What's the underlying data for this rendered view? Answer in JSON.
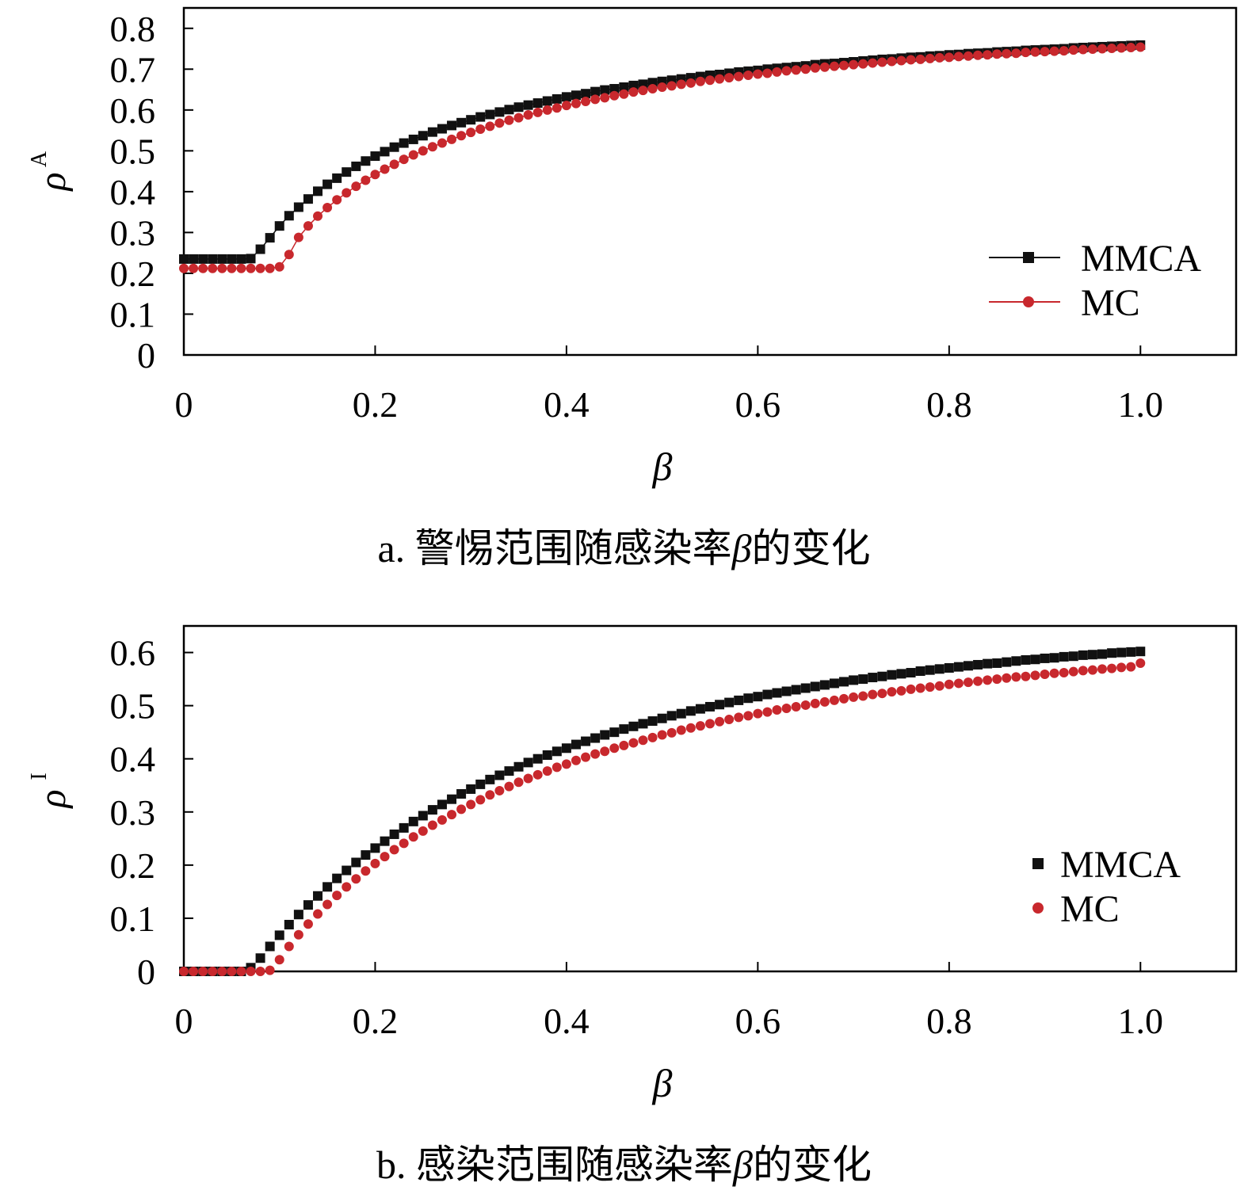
{
  "chart_data": [
    {
      "type": "line",
      "panel": "a",
      "caption": {
        "prefix": "a. 警惕范围随感染率",
        "symbol": "β",
        "suffix": "的变化"
      },
      "xlabel": "β",
      "ylabel": "ρ",
      "ylabel_sup": "A",
      "xlim": [
        0,
        1.1
      ],
      "ylim": [
        0,
        0.85
      ],
      "xticks": [
        0,
        0.2,
        0.4,
        0.6,
        0.8,
        1.0
      ],
      "xtick_labels": [
        "0",
        "0.2",
        "0.4",
        "0.6",
        "0.8",
        "1.0"
      ],
      "yticks": [
        0,
        0.1,
        0.2,
        0.3,
        0.4,
        0.5,
        0.6,
        0.7,
        0.8
      ],
      "ytick_labels": [
        "0",
        "0.1",
        "0.2",
        "0.3",
        "0.4",
        "0.5",
        "0.6",
        "0.7",
        "0.8"
      ],
      "grid": false,
      "legend": {
        "position": "right",
        "show_lines": true
      },
      "x": [
        0.0,
        0.01,
        0.02,
        0.03,
        0.04,
        0.05,
        0.06,
        0.07,
        0.08,
        0.09,
        0.1,
        0.11,
        0.12,
        0.13,
        0.14,
        0.15,
        0.16,
        0.17,
        0.18,
        0.19,
        0.2,
        0.21,
        0.22,
        0.23,
        0.24,
        0.25,
        0.26,
        0.27,
        0.28,
        0.29,
        0.3,
        0.31,
        0.32,
        0.33,
        0.34,
        0.35,
        0.36,
        0.37,
        0.38,
        0.39,
        0.4,
        0.41,
        0.42,
        0.43,
        0.44,
        0.45,
        0.46,
        0.47,
        0.48,
        0.49,
        0.5,
        0.51,
        0.52,
        0.53,
        0.54,
        0.55,
        0.56,
        0.57,
        0.58,
        0.59,
        0.6,
        0.61,
        0.62,
        0.63,
        0.64,
        0.65,
        0.66,
        0.67,
        0.68,
        0.69,
        0.7,
        0.71,
        0.72,
        0.73,
        0.74,
        0.75,
        0.76,
        0.77,
        0.78,
        0.79,
        0.8,
        0.81,
        0.82,
        0.83,
        0.84,
        0.85,
        0.86,
        0.87,
        0.88,
        0.89,
        0.9,
        0.91,
        0.92,
        0.93,
        0.94,
        0.95,
        0.96,
        0.97,
        0.98,
        0.99,
        1.0
      ],
      "series": [
        {
          "name": "MMCA",
          "color": "#111111",
          "marker": "square",
          "values": [
            0.235,
            0.235,
            0.235,
            0.235,
            0.235,
            0.235,
            0.235,
            0.236,
            0.259,
            0.287,
            0.316,
            0.341,
            0.362,
            0.382,
            0.401,
            0.418,
            0.433,
            0.448,
            0.462,
            0.475,
            0.487,
            0.498,
            0.509,
            0.519,
            0.528,
            0.537,
            0.546,
            0.554,
            0.562,
            0.569,
            0.576,
            0.583,
            0.589,
            0.595,
            0.601,
            0.607,
            0.612,
            0.617,
            0.622,
            0.627,
            0.632,
            0.636,
            0.64,
            0.645,
            0.649,
            0.652,
            0.656,
            0.66,
            0.663,
            0.667,
            0.67,
            0.673,
            0.676,
            0.679,
            0.682,
            0.685,
            0.687,
            0.69,
            0.693,
            0.695,
            0.697,
            0.7,
            0.702,
            0.704,
            0.706,
            0.708,
            0.711,
            0.713,
            0.714,
            0.716,
            0.718,
            0.72,
            0.722,
            0.724,
            0.725,
            0.727,
            0.729,
            0.73,
            0.732,
            0.733,
            0.735,
            0.736,
            0.738,
            0.739,
            0.74,
            0.742,
            0.743,
            0.744,
            0.746,
            0.747,
            0.748,
            0.749,
            0.75,
            0.752,
            0.753,
            0.754,
            0.755,
            0.756,
            0.757,
            0.758,
            0.759
          ]
        },
        {
          "name": "MC",
          "color": "#c8282d",
          "marker": "circle",
          "values": [
            0.212,
            0.212,
            0.212,
            0.212,
            0.212,
            0.212,
            0.212,
            0.212,
            0.212,
            0.212,
            0.216,
            0.246,
            0.288,
            0.316,
            0.34,
            0.361,
            0.38,
            0.397,
            0.413,
            0.428,
            0.442,
            0.455,
            0.467,
            0.479,
            0.49,
            0.5,
            0.51,
            0.519,
            0.528,
            0.537,
            0.545,
            0.553,
            0.56,
            0.568,
            0.575,
            0.581,
            0.588,
            0.594,
            0.6,
            0.605,
            0.611,
            0.616,
            0.621,
            0.626,
            0.63,
            0.635,
            0.639,
            0.644,
            0.648,
            0.652,
            0.656,
            0.659,
            0.663,
            0.666,
            0.67,
            0.673,
            0.676,
            0.679,
            0.682,
            0.685,
            0.688,
            0.69,
            0.693,
            0.696,
            0.698,
            0.7,
            0.703,
            0.705,
            0.707,
            0.709,
            0.711,
            0.713,
            0.715,
            0.717,
            0.719,
            0.721,
            0.723,
            0.724,
            0.726,
            0.728,
            0.729,
            0.731,
            0.732,
            0.734,
            0.735,
            0.737,
            0.738,
            0.739,
            0.741,
            0.742,
            0.743,
            0.744,
            0.745,
            0.747,
            0.748,
            0.749,
            0.75,
            0.751,
            0.752,
            0.753,
            0.754
          ]
        }
      ]
    },
    {
      "type": "scatter",
      "panel": "b",
      "caption": {
        "prefix": "b. 感染范围随感染率",
        "symbol": "β",
        "suffix": "的变化"
      },
      "xlabel": "β",
      "ylabel": "ρ",
      "ylabel_sup": "I",
      "xlim": [
        0,
        1.1
      ],
      "ylim": [
        0,
        0.65
      ],
      "xticks": [
        0,
        0.2,
        0.4,
        0.6,
        0.8,
        1.0
      ],
      "xtick_labels": [
        "0",
        "0.2",
        "0.4",
        "0.6",
        "0.8",
        "1.0"
      ],
      "yticks": [
        0,
        0.1,
        0.2,
        0.3,
        0.4,
        0.5,
        0.6
      ],
      "ytick_labels": [
        "0",
        "0.1",
        "0.2",
        "0.3",
        "0.4",
        "0.5",
        "0.6"
      ],
      "grid": false,
      "legend": {
        "position": "right",
        "show_lines": false
      },
      "x": [
        0.0,
        0.01,
        0.02,
        0.03,
        0.04,
        0.05,
        0.06,
        0.07,
        0.08,
        0.09,
        0.1,
        0.11,
        0.12,
        0.13,
        0.14,
        0.15,
        0.16,
        0.17,
        0.18,
        0.19,
        0.2,
        0.21,
        0.22,
        0.23,
        0.24,
        0.25,
        0.26,
        0.27,
        0.28,
        0.29,
        0.3,
        0.31,
        0.32,
        0.33,
        0.34,
        0.35,
        0.36,
        0.37,
        0.38,
        0.39,
        0.4,
        0.41,
        0.42,
        0.43,
        0.44,
        0.45,
        0.46,
        0.47,
        0.48,
        0.49,
        0.5,
        0.51,
        0.52,
        0.53,
        0.54,
        0.55,
        0.56,
        0.57,
        0.58,
        0.59,
        0.6,
        0.61,
        0.62,
        0.63,
        0.64,
        0.65,
        0.66,
        0.67,
        0.68,
        0.69,
        0.7,
        0.71,
        0.72,
        0.73,
        0.74,
        0.75,
        0.76,
        0.77,
        0.78,
        0.79,
        0.8,
        0.81,
        0.82,
        0.83,
        0.84,
        0.85,
        0.86,
        0.87,
        0.88,
        0.89,
        0.9,
        0.91,
        0.92,
        0.93,
        0.94,
        0.95,
        0.96,
        0.97,
        0.98,
        0.99,
        1.0
      ],
      "series": [
        {
          "name": "MMCA",
          "color": "#111111",
          "marker": "square",
          "values": [
            0.0,
            0.0,
            0.0,
            0.0,
            0.0,
            0.0,
            0.0,
            0.007,
            0.025,
            0.047,
            0.068,
            0.088,
            0.107,
            0.125,
            0.142,
            0.159,
            0.175,
            0.19,
            0.205,
            0.219,
            0.232,
            0.245,
            0.258,
            0.27,
            0.282,
            0.293,
            0.304,
            0.314,
            0.324,
            0.334,
            0.343,
            0.352,
            0.361,
            0.369,
            0.377,
            0.385,
            0.393,
            0.4,
            0.407,
            0.414,
            0.42,
            0.427,
            0.433,
            0.439,
            0.445,
            0.45,
            0.456,
            0.461,
            0.466,
            0.471,
            0.476,
            0.481,
            0.485,
            0.49,
            0.494,
            0.498,
            0.502,
            0.506,
            0.51,
            0.514,
            0.517,
            0.521,
            0.524,
            0.527,
            0.53,
            0.533,
            0.536,
            0.539,
            0.542,
            0.545,
            0.548,
            0.55,
            0.553,
            0.555,
            0.558,
            0.56,
            0.562,
            0.565,
            0.567,
            0.569,
            0.571,
            0.573,
            0.575,
            0.577,
            0.579,
            0.58,
            0.582,
            0.584,
            0.586,
            0.587,
            0.589,
            0.59,
            0.592,
            0.593,
            0.595,
            0.596,
            0.597,
            0.599,
            0.6,
            0.601,
            0.602
          ]
        },
        {
          "name": "MC",
          "color": "#c8282d",
          "marker": "circle",
          "values": [
            0.0,
            0.0,
            0.0,
            0.0,
            0.0,
            0.0,
            0.0,
            0.0,
            0.0,
            0.002,
            0.022,
            0.047,
            0.069,
            0.089,
            0.108,
            0.126,
            0.143,
            0.159,
            0.174,
            0.189,
            0.203,
            0.216,
            0.229,
            0.241,
            0.253,
            0.264,
            0.275,
            0.285,
            0.295,
            0.305,
            0.314,
            0.323,
            0.332,
            0.34,
            0.348,
            0.356,
            0.363,
            0.37,
            0.377,
            0.384,
            0.39,
            0.397,
            0.403,
            0.409,
            0.414,
            0.42,
            0.425,
            0.43,
            0.435,
            0.44,
            0.445,
            0.449,
            0.454,
            0.458,
            0.462,
            0.466,
            0.47,
            0.474,
            0.478,
            0.481,
            0.485,
            0.488,
            0.492,
            0.495,
            0.498,
            0.501,
            0.504,
            0.507,
            0.51,
            0.513,
            0.516,
            0.518,
            0.521,
            0.523,
            0.526,
            0.528,
            0.531,
            0.533,
            0.535,
            0.537,
            0.54,
            0.542,
            0.544,
            0.546,
            0.548,
            0.55,
            0.552,
            0.554,
            0.555,
            0.557,
            0.559,
            0.561,
            0.562,
            0.564,
            0.566,
            0.567,
            0.569,
            0.57,
            0.572,
            0.573,
            0.58
          ]
        }
      ]
    }
  ]
}
